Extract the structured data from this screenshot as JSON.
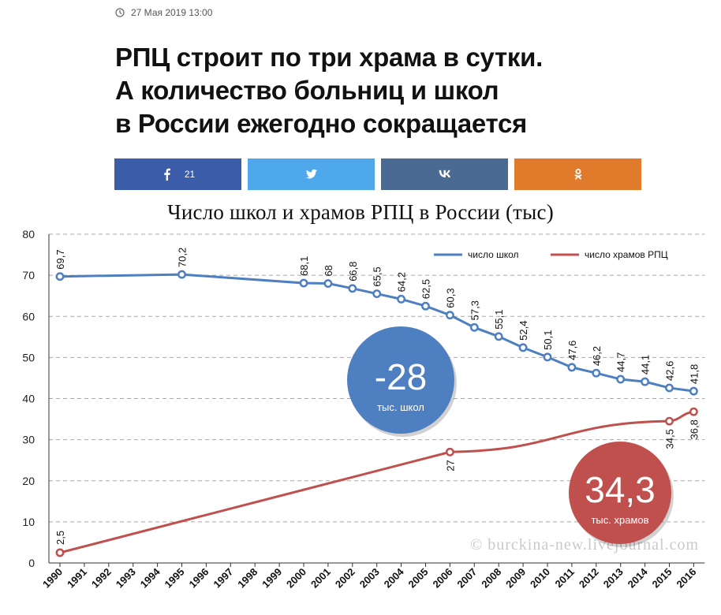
{
  "article": {
    "date": "27 Мая 2019 13:00",
    "headline_lines": [
      "РПЦ строит по три храма в сутки.",
      "А количество больниц и школ",
      "в России ежегодно сокращается"
    ]
  },
  "share": {
    "facebook_count": "21",
    "colors": {
      "facebook": "#3b5ca8",
      "twitter": "#4fa8ec",
      "vk": "#4a6a93",
      "ok": "#e07b2c"
    }
  },
  "chart_data": {
    "type": "line",
    "title": "Число школ и храмов РПЦ в России (тыс)",
    "categories": [
      "1990",
      "1991",
      "1992",
      "1993",
      "1994",
      "1995",
      "1996",
      "1997",
      "1998",
      "1999",
      "2000",
      "2001",
      "2002",
      "2003",
      "2004",
      "2005",
      "2006",
      "2007",
      "2008",
      "2009",
      "2010",
      "2011",
      "2012",
      "2013",
      "2014",
      "2015",
      "2016"
    ],
    "ylim": [
      0,
      80
    ],
    "yticks": [
      0,
      10,
      20,
      30,
      40,
      50,
      60,
      70,
      80
    ],
    "grid": true,
    "legend": "top-right",
    "series": [
      {
        "name": "число школ",
        "color": "#4e7fc1",
        "points": [
          [
            "1990",
            69.7
          ],
          [
            "1995",
            70.2
          ],
          [
            "2000",
            68.1
          ],
          [
            "2001",
            68
          ],
          [
            "2002",
            66.8
          ],
          [
            "2003",
            65.5
          ],
          [
            "2004",
            64.2
          ],
          [
            "2005",
            62.5
          ],
          [
            "2006",
            60.3
          ],
          [
            "2007",
            57.3
          ],
          [
            "2008",
            55.1
          ],
          [
            "2009",
            52.4
          ],
          [
            "2010",
            50.1
          ],
          [
            "2011",
            47.6
          ],
          [
            "2012",
            46.2
          ],
          [
            "2013",
            44.7
          ],
          [
            "2014",
            44.1
          ],
          [
            "2015",
            42.6
          ],
          [
            "2016",
            41.8
          ]
        ],
        "labels": [
          "69,7",
          "70,2",
          "68,1",
          "68",
          "66,8",
          "65,5",
          "64,2",
          "62,5",
          "60,3",
          "57,3",
          "55,1",
          "52,4",
          "50,1",
          "47,6",
          "46,2",
          "44,7",
          "44,1",
          "42,6",
          "41,8"
        ]
      },
      {
        "name": "число храмов РПЦ",
        "color": "#c0504d",
        "points": [
          [
            "1990",
            2.5
          ],
          [
            "2006",
            27
          ],
          [
            "2015",
            34.5
          ],
          [
            "2016",
            36.8
          ]
        ],
        "labels": [
          "2,5",
          "27",
          "34,5",
          "36,8"
        ]
      }
    ],
    "annotations": [
      {
        "value": "-28",
        "caption": "тыс. школ",
        "color": "#4e7fc1"
      },
      {
        "value": "34,3",
        "caption": "тыс. храмов",
        "color": "#c0504d"
      }
    ],
    "watermark": "© burckina-new.livejournal.com"
  }
}
